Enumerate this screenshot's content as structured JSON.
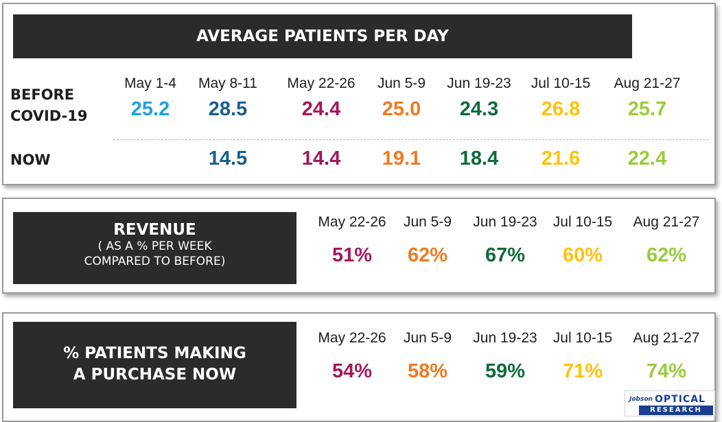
{
  "patients": {
    "title": "AVERAGE PATIENTS PER DAY",
    "before_label_1": "BEFORE",
    "before_label_2": "COVID-19",
    "now_label": "NOW",
    "columns": [
      {
        "date": "May 1-4",
        "before": "25.2",
        "now": "",
        "color": "#1fa0e0"
      },
      {
        "date": "May 8-11",
        "before": "28.5",
        "now": "14.5",
        "color": "#1b5e8c"
      },
      {
        "date": "May 22-26",
        "before": "24.4",
        "now": "14.4",
        "color": "#a3195b"
      },
      {
        "date": "Jun 5-9",
        "before": "25.0",
        "now": "19.1",
        "color": "#f07a20"
      },
      {
        "date": "Jun 19-23",
        "before": "24.3",
        "now": "18.4",
        "color": "#0f6a3a"
      },
      {
        "date": "Jul 10-15",
        "before": "26.8",
        "now": "21.6",
        "color": "#ffc20e"
      },
      {
        "date": "Aug 21-27",
        "before": "25.7",
        "now": "22.4",
        "color": "#9bcb3c"
      }
    ]
  },
  "revenue": {
    "title": "REVENUE",
    "subtitle_1": "( AS A % PER WEEK",
    "subtitle_2": "COMPARED TO BEFORE)",
    "columns": [
      {
        "date": "May 22-26",
        "value": "51%",
        "color": "#a3195b"
      },
      {
        "date": "Jun 5-9",
        "value": "62%",
        "color": "#f07a20"
      },
      {
        "date": "Jun 19-23",
        "value": "67%",
        "color": "#0f6a3a"
      },
      {
        "date": "Jul 10-15",
        "value": "60%",
        "color": "#ffc20e"
      },
      {
        "date": "Aug 21-27",
        "value": "62%",
        "color": "#9bcb3c"
      }
    ]
  },
  "purchase": {
    "title_1": "% PATIENTS MAKING",
    "title_2": "A PURCHASE  NOW",
    "columns": [
      {
        "date": "May 22-26",
        "value": "54%",
        "color": "#a3195b"
      },
      {
        "date": "Jun 5-9",
        "value": "58%",
        "color": "#f07a20"
      },
      {
        "date": "Jun 19-23",
        "value": "59%",
        "color": "#0f6a3a"
      },
      {
        "date": "Jul 10-15",
        "value": "71%",
        "color": "#ffc20e"
      },
      {
        "date": "Aug 21-27",
        "value": "74%",
        "color": "#9bcb3c"
      }
    ]
  },
  "logo": {
    "brand": "Jobson",
    "line1": "OPTICAL",
    "line2": "RESEARCH"
  }
}
